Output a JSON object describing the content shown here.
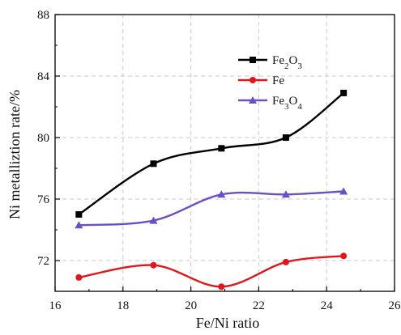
{
  "chart_data": {
    "type": "line",
    "xlabel": "Fe/Ni ratio",
    "ylabel": "Ni metalliztion rate/%",
    "xlim": [
      16,
      26
    ],
    "ylim": [
      70,
      88
    ],
    "x_ticks": [
      16,
      18,
      20,
      22,
      24,
      26
    ],
    "y_ticks": [
      72,
      76,
      80,
      84,
      88
    ],
    "grid": true,
    "legend_position": "top-right",
    "series": [
      {
        "name": "Fe2O3",
        "color": "#000000",
        "marker": "square",
        "x": [
          16.7,
          18.9,
          20.9,
          22.8,
          24.5
        ],
        "values": [
          75.0,
          78.3,
          79.3,
          80.0,
          82.9
        ]
      },
      {
        "name": "Fe",
        "color": "#e0161b",
        "marker": "circle",
        "x": [
          16.7,
          18.9,
          20.9,
          22.8,
          24.5
        ],
        "values": [
          70.9,
          71.7,
          70.3,
          71.9,
          72.3
        ]
      },
      {
        "name": "Fe3O4",
        "color": "#6a4fc6",
        "marker": "triangle",
        "x": [
          16.7,
          18.9,
          20.9,
          22.8,
          24.5
        ],
        "values": [
          74.3,
          74.6,
          76.3,
          76.3,
          76.5
        ]
      }
    ]
  }
}
